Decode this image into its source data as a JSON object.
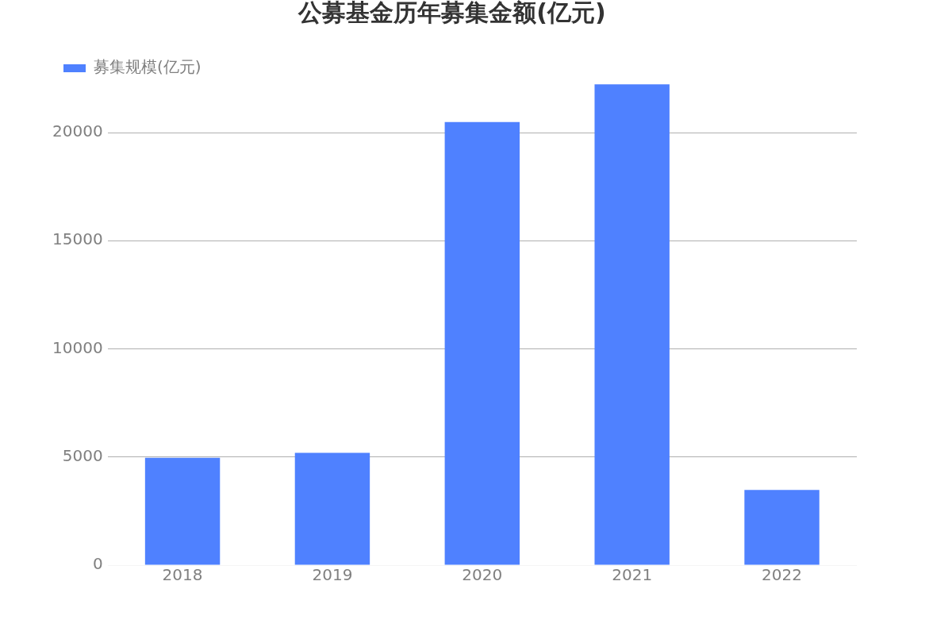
{
  "chart_data": {
    "type": "bar",
    "title": "公募基金历年募集金额(亿元)",
    "categories": [
      "2018",
      "2019",
      "2020",
      "2021",
      "2022"
    ],
    "series": [
      {
        "name": "募集规模(亿元)",
        "color": "#4f81ff",
        "values": [
          4960,
          5190,
          20490,
          22230,
          3480
        ]
      }
    ],
    "ylim": [
      0,
      22240
    ],
    "yticks": [
      0,
      5000,
      10000,
      15000,
      20000
    ],
    "grid": "y",
    "legend": "top left"
  }
}
